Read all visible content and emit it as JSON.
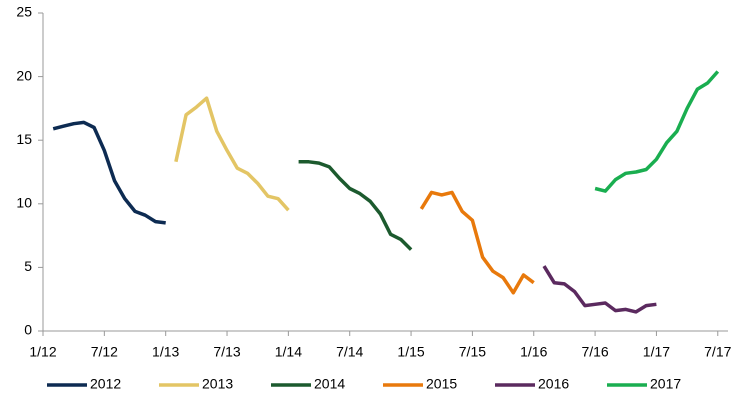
{
  "chart_data": {
    "type": "line",
    "ylim": [
      0,
      25
    ],
    "yticks": [
      0,
      5,
      10,
      15,
      20,
      25
    ],
    "xlim": [
      "2012-01",
      "2017-08"
    ],
    "xticks": [
      {
        "value": "2012-01",
        "label": "1/12"
      },
      {
        "value": "2012-07",
        "label": "7/12"
      },
      {
        "value": "2013-01",
        "label": "1/13"
      },
      {
        "value": "2013-07",
        "label": "7/13"
      },
      {
        "value": "2014-01",
        "label": "1/14"
      },
      {
        "value": "2014-07",
        "label": "7/14"
      },
      {
        "value": "2015-01",
        "label": "1/15"
      },
      {
        "value": "2015-07",
        "label": "7/15"
      },
      {
        "value": "2016-01",
        "label": "1/16"
      },
      {
        "value": "2016-07",
        "label": "7/16"
      },
      {
        "value": "2017-01",
        "label": "1/17"
      },
      {
        "value": "2017-07",
        "label": "7/17"
      }
    ],
    "grid": false,
    "legend": "bottom",
    "series": [
      {
        "name": "2012",
        "color": "#0d2b52",
        "x": [
          "2012-02",
          "2012-03",
          "2012-04",
          "2012-05",
          "2012-06",
          "2012-07",
          "2012-08",
          "2012-09",
          "2012-10",
          "2012-11",
          "2012-12",
          "2013-01"
        ],
        "values": [
          15.9,
          16.1,
          16.3,
          16.4,
          16.0,
          14.2,
          11.8,
          10.4,
          9.4,
          9.1,
          8.6,
          8.5
        ]
      },
      {
        "name": "2013",
        "color": "#e3c565",
        "x": [
          "2013-02",
          "2013-03",
          "2013-04",
          "2013-05",
          "2013-06",
          "2013-07",
          "2013-08",
          "2013-09",
          "2013-10",
          "2013-11",
          "2013-12",
          "2014-01"
        ],
        "values": [
          13.3,
          17.0,
          17.6,
          18.3,
          15.7,
          14.2,
          12.8,
          12.4,
          11.6,
          10.6,
          10.4,
          9.5
        ]
      },
      {
        "name": "2014",
        "color": "#1c5a2e",
        "x": [
          "2014-02",
          "2014-03",
          "2014-04",
          "2014-05",
          "2014-06",
          "2014-07",
          "2014-08",
          "2014-09",
          "2014-10",
          "2014-11",
          "2014-12",
          "2015-01"
        ],
        "values": [
          13.3,
          13.3,
          13.2,
          12.9,
          12.0,
          11.2,
          10.8,
          10.2,
          9.2,
          7.6,
          7.2,
          6.4
        ]
      },
      {
        "name": "2015",
        "color": "#e8790c",
        "x": [
          "2015-02",
          "2015-03",
          "2015-04",
          "2015-05",
          "2015-06",
          "2015-07",
          "2015-08",
          "2015-09",
          "2015-10",
          "2015-11",
          "2015-12",
          "2016-01"
        ],
        "values": [
          9.6,
          10.9,
          10.7,
          10.9,
          9.4,
          8.7,
          5.8,
          4.7,
          4.2,
          3.0,
          4.4,
          3.8
        ]
      },
      {
        "name": "2016",
        "color": "#5b2a5f",
        "x": [
          "2016-02",
          "2016-03",
          "2016-04",
          "2016-05",
          "2016-06",
          "2016-07",
          "2016-08",
          "2016-09",
          "2016-10",
          "2016-11",
          "2016-12",
          "2017-01"
        ],
        "values": [
          5.1,
          3.8,
          3.7,
          3.1,
          2.0,
          2.1,
          2.2,
          1.6,
          1.7,
          1.5,
          2.0,
          2.1
        ]
      },
      {
        "name": "2017",
        "color": "#1aae50",
        "x": [
          "2016-07",
          "2016-08",
          "2016-09",
          "2016-10",
          "2016-11",
          "2016-12",
          "2017-01",
          "2017-02",
          "2017-03",
          "2017-04",
          "2017-05",
          "2017-06",
          "2017-07"
        ],
        "values": [
          11.2,
          11.0,
          11.9,
          12.4,
          12.5,
          12.7,
          13.5,
          14.8,
          15.7,
          17.5,
          19.0,
          19.5,
          20.4
        ]
      }
    ]
  }
}
